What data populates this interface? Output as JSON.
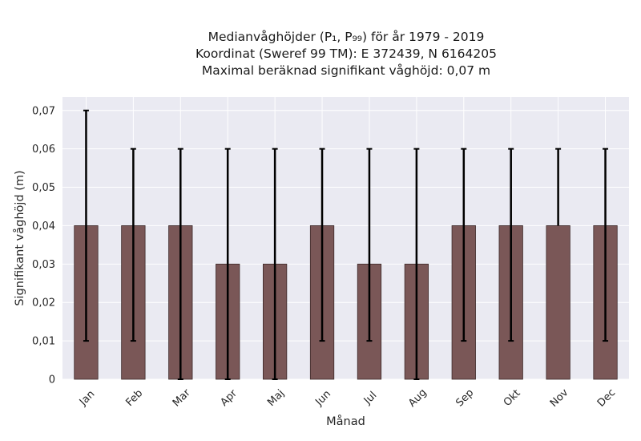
{
  "chart_data": {
    "type": "bar",
    "title": [
      "Medianvåghöjder (P₁, P₉₉) för år 1979 - 2019",
      "Koordinat (Sweref 99 TM): E 372439, N 6164205",
      "Maximal beräknad signifikant våghöjd: 0,07 m"
    ],
    "xlabel": "Månad",
    "ylabel": "Signifikant våghöjd (m)",
    "categories": [
      "Jan",
      "Feb",
      "Mar",
      "Apr",
      "Maj",
      "Jun",
      "Jul",
      "Aug",
      "Sep",
      "Okt",
      "Nov",
      "Dec"
    ],
    "values": [
      0.04,
      0.04,
      0.04,
      0.03,
      0.03,
      0.04,
      0.03,
      0.03,
      0.04,
      0.04,
      0.04,
      0.04
    ],
    "error_low": [
      0.01,
      0.01,
      0.0,
      0.0,
      0.0,
      0.01,
      0.01,
      0.0,
      0.01,
      0.01,
      null,
      0.01
    ],
    "error_high": [
      0.07,
      0.06,
      0.06,
      0.06,
      0.06,
      0.06,
      0.06,
      0.06,
      0.06,
      0.06,
      0.06,
      0.06
    ],
    "yticks": [
      "0",
      "0,01",
      "0,02",
      "0,03",
      "0,04",
      "0,05",
      "0,06",
      "0,07"
    ],
    "ylim": [
      0,
      0.0735
    ],
    "grid": true,
    "colors": {
      "bar": "#7a5757",
      "bar_edge": "#3d2a2a",
      "errorbar": "#000000",
      "background": "#eaeaf2",
      "grid": "#ffffff"
    }
  }
}
